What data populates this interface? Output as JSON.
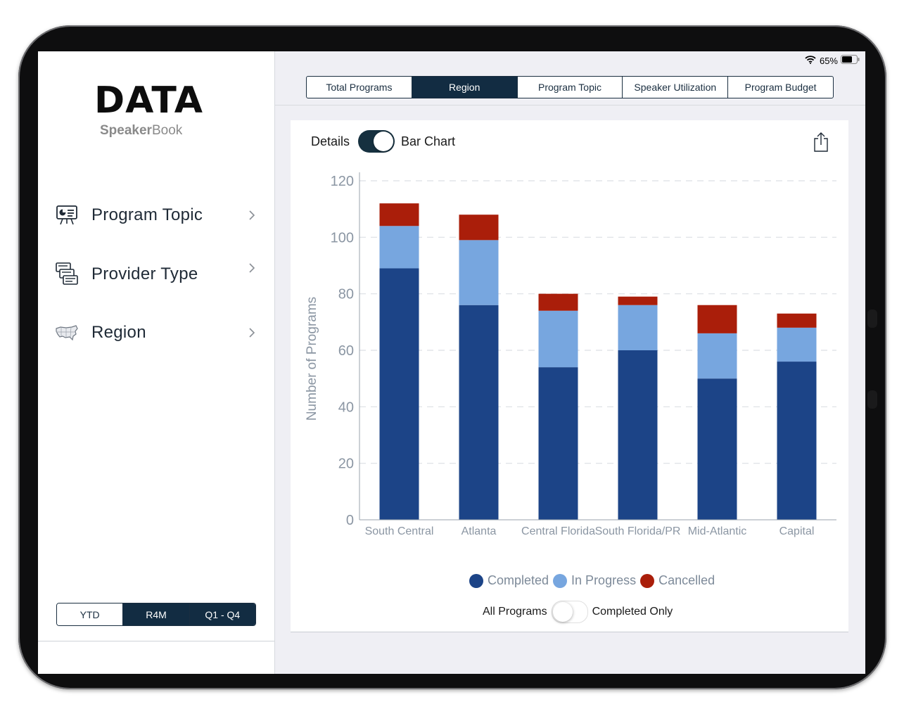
{
  "status_bar": {
    "battery": "65%"
  },
  "sidebar": {
    "logo_main": "DATA",
    "logo_sub_bold": "Speaker",
    "logo_sub_rest": "Book",
    "items": [
      {
        "label": "Program Topic",
        "icon": "presentation-chart-icon"
      },
      {
        "label": "Provider Type",
        "icon": "documents-stack-icon"
      },
      {
        "label": "Region",
        "icon": "us-map-icon"
      }
    ],
    "periods": [
      {
        "label": "YTD",
        "active": false
      },
      {
        "label": "R4M",
        "active": true
      },
      {
        "label": "Q1 - Q4",
        "active": true
      }
    ]
  },
  "tabs": [
    {
      "label": "Total Programs",
      "active": false
    },
    {
      "label": "Region",
      "active": true
    },
    {
      "label": "Program Topic",
      "active": false
    },
    {
      "label": "Speaker Utilization",
      "active": false
    },
    {
      "label": "Program Budget",
      "active": false
    }
  ],
  "view_toggle": {
    "left_label": "Details",
    "right_label": "Bar Chart",
    "on": true
  },
  "filter_toggle": {
    "left_label": "All Programs",
    "right_label": "Completed Only",
    "on": false
  },
  "colors": {
    "completed": "#1c4487",
    "in_progress": "#77a6df",
    "cancelled": "#aa1e0a",
    "accent": "#122c42"
  },
  "chart_data": {
    "type": "bar",
    "stacked": true,
    "categories": [
      "South Central",
      "Atlanta",
      "Central Florida",
      "South Florida/PR",
      "Mid-Atlantic",
      "Capital"
    ],
    "series": [
      {
        "name": "Completed",
        "values": [
          89,
          76,
          54,
          60,
          50,
          56
        ]
      },
      {
        "name": "In Progress",
        "values": [
          15,
          23,
          20,
          16,
          16,
          12
        ]
      },
      {
        "name": "Cancelled",
        "values": [
          8,
          9,
          6,
          3,
          10,
          5
        ]
      }
    ],
    "ylabel": "Number of Programs",
    "ylim": [
      0,
      120
    ],
    "yticks": [
      0,
      20,
      40,
      60,
      80,
      100,
      120
    ],
    "grid": true,
    "legend": "bottom-center"
  }
}
